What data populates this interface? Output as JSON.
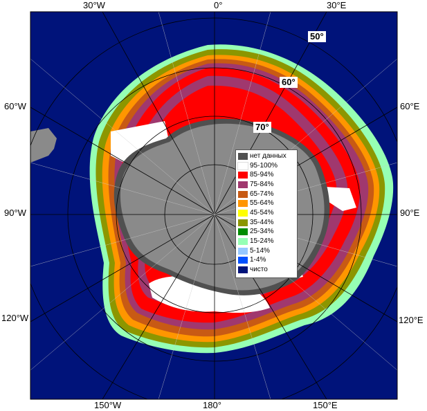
{
  "map": {
    "longitude_labels": {
      "top_w30": "30°W",
      "top_0": "0°",
      "top_e30": "30°E",
      "left_w60": "60°W",
      "left_w90": "90°W",
      "left_w120": "120°W",
      "right_e60": "60°E",
      "right_e90": "90°E",
      "right_e120": "120°E",
      "bottom_w150": "150°W",
      "bottom_180": "180°",
      "bottom_e150": "150°E"
    },
    "latitude_labels": {
      "lat50": "50°",
      "lat60": "60°",
      "lat70": "70°"
    },
    "colors": {
      "ocean": "#00137a",
      "land": "#8a8a8a",
      "grid": "#000000"
    }
  },
  "legend": {
    "items": [
      {
        "label": "нет данных",
        "color": "#505050"
      },
      {
        "label": "95-100%",
        "color": "#ffffff"
      },
      {
        "label": "85-94%",
        "color": "#ff0000"
      },
      {
        "label": "75-84%",
        "color": "#a0386e"
      },
      {
        "label": "65-74%",
        "color": "#c85a14"
      },
      {
        "label": "55-64%",
        "color": "#ff9600"
      },
      {
        "label": "45-54%",
        "color": "#ffff00"
      },
      {
        "label": "35-44%",
        "color": "#8c9600"
      },
      {
        "label": "25-34%",
        "color": "#008c00"
      },
      {
        "label": "15-24%",
        "color": "#96ffb4"
      },
      {
        "label": "5-14%",
        "color": "#96c8ff"
      },
      {
        "label": "1-4%",
        "color": "#0050ff"
      },
      {
        "label": "чисто",
        "color": "#00137a"
      }
    ]
  }
}
